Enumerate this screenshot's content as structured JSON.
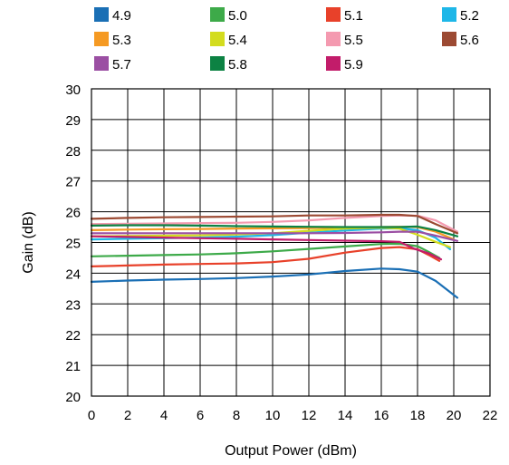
{
  "chart_data": {
    "type": "line",
    "title": "",
    "xlabel": "Output Power (dBm)",
    "ylabel": "Gain (dB)",
    "xlim": [
      0,
      22
    ],
    "ylim": [
      20,
      30
    ],
    "x_ticks": [
      "0",
      "2",
      "4",
      "6",
      "8",
      "10",
      "12",
      "14",
      "16",
      "18",
      "20",
      "22"
    ],
    "y_ticks": [
      "20",
      "21",
      "22",
      "23",
      "24",
      "25",
      "26",
      "27",
      "28",
      "29",
      "30"
    ],
    "grid": true,
    "legend_position": "top",
    "series": [
      {
        "name": "4.9",
        "color": "#1a6fb5",
        "x": [
          0,
          2,
          4,
          6,
          8,
          10,
          12,
          14,
          16,
          17,
          18,
          19,
          20.2
        ],
        "y": [
          23.72,
          23.76,
          23.79,
          23.81,
          23.84,
          23.89,
          23.96,
          24.07,
          24.15,
          24.13,
          24.05,
          23.75,
          23.2
        ]
      },
      {
        "name": "5.0",
        "color": "#3daa49",
        "x": [
          0,
          2,
          4,
          6,
          8,
          10,
          12,
          14,
          16,
          17,
          18,
          18.6,
          19.2
        ],
        "y": [
          24.55,
          24.57,
          24.59,
          24.61,
          24.65,
          24.71,
          24.79,
          24.87,
          24.95,
          24.96,
          24.88,
          24.7,
          24.5
        ]
      },
      {
        "name": "5.1",
        "color": "#e8412a",
        "x": [
          0,
          2,
          4,
          6,
          8,
          10,
          12,
          14,
          16,
          17,
          18,
          18.6,
          19.2
        ],
        "y": [
          24.22,
          24.25,
          24.28,
          24.3,
          24.32,
          24.36,
          24.47,
          24.67,
          24.82,
          24.85,
          24.78,
          24.6,
          24.4
        ]
      },
      {
        "name": "5.2",
        "color": "#1eb7e8",
        "x": [
          0,
          2,
          4,
          6,
          8,
          10,
          12,
          14,
          16,
          17,
          18,
          19,
          19.8
        ],
        "y": [
          25.1,
          25.12,
          25.14,
          25.16,
          25.19,
          25.24,
          25.32,
          25.39,
          25.45,
          25.46,
          25.4,
          25.15,
          24.78
        ]
      },
      {
        "name": "5.3",
        "color": "#f59a23",
        "x": [
          0,
          2,
          4,
          6,
          8,
          10,
          12,
          14,
          16,
          17,
          18,
          19,
          20
        ],
        "y": [
          25.4,
          25.42,
          25.43,
          25.44,
          25.45,
          25.46,
          25.47,
          25.48,
          25.5,
          25.51,
          25.5,
          25.35,
          25.1
        ]
      },
      {
        "name": "5.4",
        "color": "#d3dc1e",
        "x": [
          0,
          2,
          4,
          6,
          8,
          10,
          12,
          14,
          16,
          17,
          18,
          19,
          19.8
        ],
        "y": [
          25.2,
          25.21,
          25.22,
          25.23,
          25.26,
          25.3,
          25.38,
          25.45,
          25.48,
          25.45,
          25.25,
          25.02,
          24.85
        ]
      },
      {
        "name": "5.5",
        "color": "#f49ab0",
        "x": [
          0,
          2,
          4,
          6,
          8,
          10,
          12,
          14,
          16,
          17,
          18,
          19,
          20.2
        ],
        "y": [
          25.6,
          25.61,
          25.62,
          25.63,
          25.64,
          25.67,
          25.72,
          25.8,
          25.86,
          25.88,
          25.87,
          25.72,
          25.35
        ]
      },
      {
        "name": "5.6",
        "color": "#9c4a33",
        "x": [
          0,
          2,
          4,
          6,
          8,
          10,
          12,
          14,
          16,
          17,
          18,
          19,
          20.2
        ],
        "y": [
          25.77,
          25.8,
          25.82,
          25.83,
          25.84,
          25.85,
          25.88,
          25.88,
          25.9,
          25.9,
          25.86,
          25.6,
          25.3
        ]
      },
      {
        "name": "5.7",
        "color": "#9b4fa3",
        "x": [
          0,
          2,
          4,
          6,
          8,
          10,
          12,
          14,
          16,
          17,
          18,
          19,
          20.2
        ],
        "y": [
          25.3,
          25.3,
          25.3,
          25.3,
          25.3,
          25.3,
          25.3,
          25.31,
          25.33,
          25.35,
          25.35,
          25.22,
          25.05
        ]
      },
      {
        "name": "5.8",
        "color": "#0c8243",
        "x": [
          0,
          2,
          4,
          6,
          8,
          10,
          12,
          14,
          16,
          17,
          18,
          19,
          20.2
        ],
        "y": [
          25.55,
          25.56,
          25.56,
          25.55,
          25.53,
          25.52,
          25.51,
          25.5,
          25.5,
          25.5,
          25.52,
          25.4,
          25.2
        ]
      },
      {
        "name": "5.9",
        "color": "#c21c6a",
        "x": [
          0,
          2,
          4,
          6,
          8,
          10,
          12,
          14,
          16,
          17,
          17.8,
          18.6,
          19.3
        ],
        "y": [
          25.2,
          25.18,
          25.16,
          25.14,
          25.12,
          25.1,
          25.08,
          25.06,
          25.04,
          25.02,
          24.8,
          24.65,
          24.45
        ]
      }
    ]
  }
}
